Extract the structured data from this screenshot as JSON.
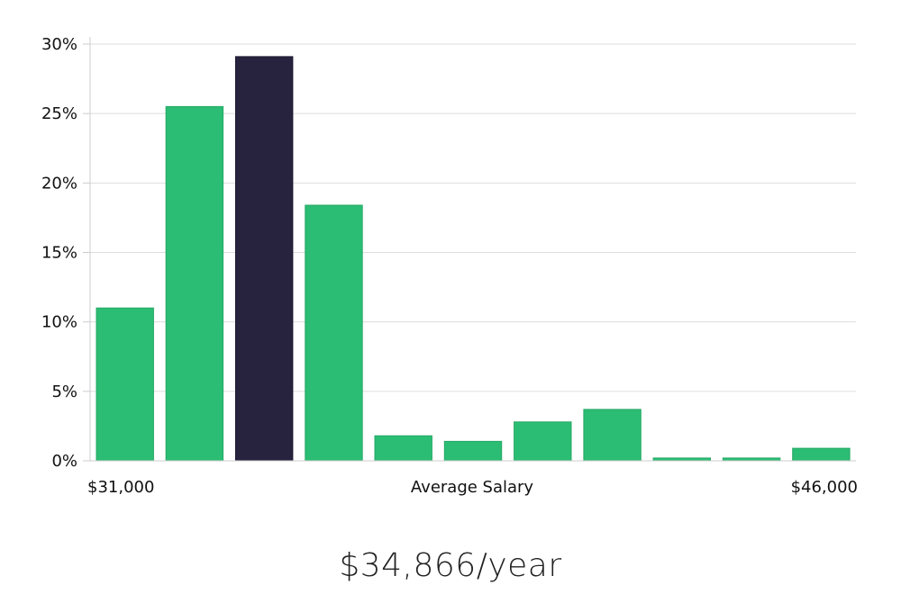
{
  "chart_data": {
    "type": "bar",
    "categories": [
      "1",
      "2",
      "3",
      "4",
      "5",
      "6",
      "7",
      "8",
      "9",
      "10",
      "11"
    ],
    "values": [
      11.0,
      25.5,
      29.1,
      18.4,
      1.8,
      1.4,
      2.8,
      3.7,
      0.2,
      0.2,
      0.9
    ],
    "highlight_index": 2,
    "ylim": [
      0,
      30
    ],
    "yticks": [
      "0%",
      "5%",
      "10%",
      "15%",
      "20%",
      "25%",
      "30%"
    ],
    "ytick_values": [
      0,
      5,
      10,
      15,
      20,
      25,
      30
    ],
    "x_min_label": "$31,000",
    "x_max_label": "$46,000",
    "xlabel": "Average Salary",
    "grid": true,
    "colors": {
      "bar": "#2bbd74",
      "highlight": "#27233f",
      "grid": "#dddddd",
      "axis": "#cccccc"
    }
  },
  "summary": {
    "salary": "$34,866/year"
  }
}
